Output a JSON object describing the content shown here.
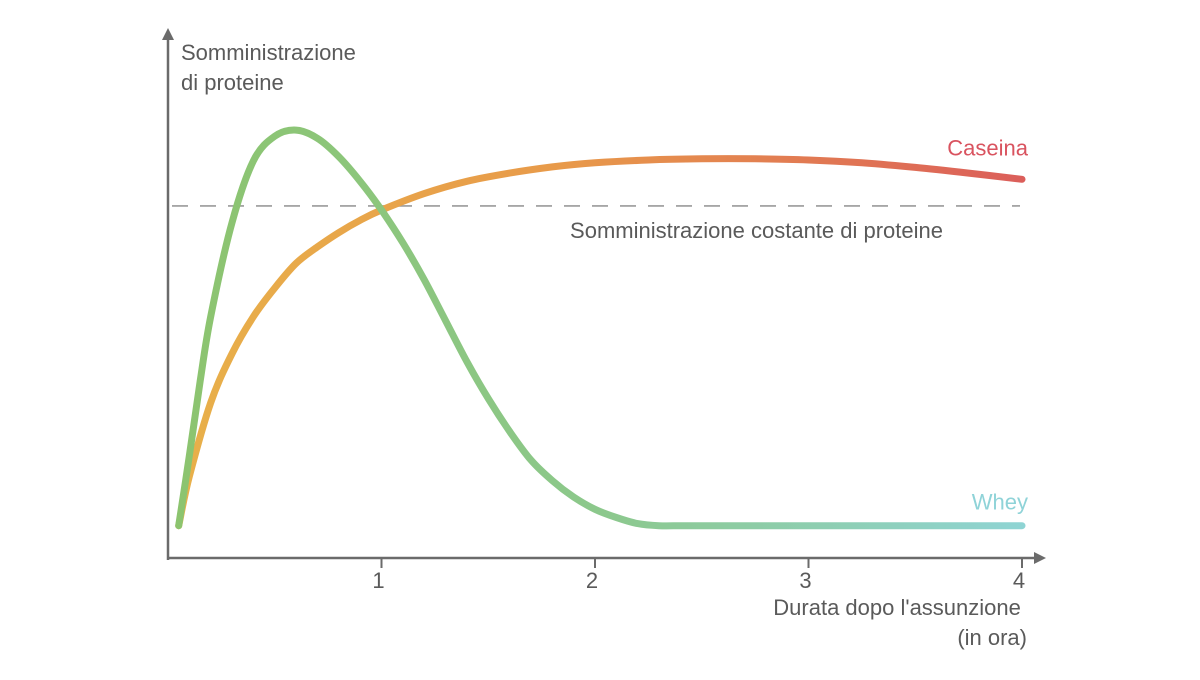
{
  "chart_data": {
    "type": "line",
    "ylabel_lines": [
      "Somministrazione",
      "di proteine"
    ],
    "xlabel_lines": [
      "Durata dopo l'assunzione",
      "(in ora)"
    ],
    "xlim": [
      0,
      4
    ],
    "ylim": [
      0,
      1
    ],
    "x_ticks": [
      {
        "value": 1,
        "label": "1"
      },
      {
        "value": 2,
        "label": "2"
      },
      {
        "value": 3,
        "label": "3"
      },
      {
        "value": 4,
        "label": "4"
      }
    ],
    "reference_line": {
      "label": "Somministrazione costante di proteine",
      "y": 0.81
    },
    "series": [
      {
        "name": "Caseina",
        "label_color": "#d9535f",
        "gradient": [
          "#e8b04a",
          "#e89a4a",
          "#db5e5a"
        ],
        "x": [
          0.05,
          0.1,
          0.2,
          0.3,
          0.4,
          0.5,
          0.6,
          0.7,
          0.8,
          0.9,
          1.0,
          1.2,
          1.4,
          1.6,
          1.8,
          2.0,
          2.25,
          2.5,
          2.75,
          3.0,
          3.25,
          3.5,
          3.75,
          4.0
        ],
        "y": [
          0.03,
          0.15,
          0.33,
          0.45,
          0.54,
          0.61,
          0.67,
          0.71,
          0.745,
          0.775,
          0.8,
          0.84,
          0.87,
          0.89,
          0.905,
          0.915,
          0.922,
          0.925,
          0.925,
          0.922,
          0.915,
          0.904,
          0.89,
          0.875
        ]
      },
      {
        "name": "Whey",
        "label_color": "#8fd3d8",
        "gradient": [
          "#8cc46f",
          "#8cc88c",
          "#8fd4d4"
        ],
        "x": [
          0.05,
          0.1,
          0.15,
          0.2,
          0.3,
          0.4,
          0.5,
          0.6,
          0.7,
          0.8,
          0.9,
          1.0,
          1.1,
          1.2,
          1.3,
          1.4,
          1.5,
          1.6,
          1.7,
          1.8,
          1.9,
          2.0,
          2.1,
          2.2,
          2.3,
          2.4,
          2.5,
          2.75,
          3.0,
          3.5,
          4.0
        ],
        "y": [
          0.03,
          0.2,
          0.38,
          0.54,
          0.77,
          0.92,
          0.98,
          0.995,
          0.975,
          0.93,
          0.87,
          0.8,
          0.72,
          0.63,
          0.53,
          0.43,
          0.34,
          0.26,
          0.19,
          0.14,
          0.1,
          0.07,
          0.05,
          0.035,
          0.03,
          0.03,
          0.03,
          0.03,
          0.03,
          0.03,
          0.03
        ]
      }
    ]
  }
}
